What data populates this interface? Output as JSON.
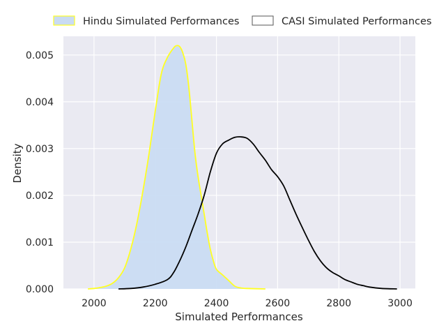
{
  "chart_data": {
    "type": "area",
    "xlabel": "Simulated Performances",
    "ylabel": "Density",
    "xlim": [
      1900,
      3050
    ],
    "ylim": [
      0,
      0.0054
    ],
    "x_ticks": [
      2000,
      2200,
      2400,
      2600,
      2800,
      3000
    ],
    "y_ticks": [
      0.0,
      0.001,
      0.002,
      0.003,
      0.004,
      0.005
    ],
    "y_tick_labels": [
      "0.000",
      "0.001",
      "0.002",
      "0.003",
      "0.004",
      "0.005"
    ],
    "grid": true,
    "legend_position": "top",
    "series": [
      {
        "name": "Hindu Simulated Performances",
        "kind": "filled-kde",
        "fill_color": "#c9dbf3",
        "line_color": "#ffff22",
        "points": [
          [
            1980,
            0.0
          ],
          [
            2000,
            1e-05
          ],
          [
            2020,
            3e-05
          ],
          [
            2040,
            6e-05
          ],
          [
            2060,
            0.00012
          ],
          [
            2080,
            0.00024
          ],
          [
            2100,
            0.00045
          ],
          [
            2120,
            0.00085
          ],
          [
            2140,
            0.0014
          ],
          [
            2160,
            0.0021
          ],
          [
            2180,
            0.0029
          ],
          [
            2200,
            0.0038
          ],
          [
            2220,
            0.0046
          ],
          [
            2240,
            0.00495
          ],
          [
            2260,
            0.00515
          ],
          [
            2270,
            0.0052
          ],
          [
            2280,
            0.00518
          ],
          [
            2290,
            0.00505
          ],
          [
            2300,
            0.0048
          ],
          [
            2310,
            0.0043
          ],
          [
            2320,
            0.0036
          ],
          [
            2330,
            0.0029
          ],
          [
            2340,
            0.0024
          ],
          [
            2350,
            0.002
          ],
          [
            2360,
            0.0016
          ],
          [
            2370,
            0.0012
          ],
          [
            2380,
            0.00085
          ],
          [
            2390,
            0.0006
          ],
          [
            2400,
            0.00042
          ],
          [
            2420,
            0.0003
          ],
          [
            2440,
            0.00018
          ],
          [
            2460,
            6e-05
          ],
          [
            2480,
            2e-05
          ],
          [
            2500,
            1e-05
          ],
          [
            2560,
            0.0
          ]
        ]
      },
      {
        "name": "CASI Simulated Performances",
        "kind": "line-kde",
        "line_color": "#000000",
        "points": [
          [
            2080,
            0.0
          ],
          [
            2120,
            1e-05
          ],
          [
            2160,
            4e-05
          ],
          [
            2200,
            0.0001
          ],
          [
            2240,
            0.0002
          ],
          [
            2260,
            0.00035
          ],
          [
            2280,
            0.0006
          ],
          [
            2300,
            0.0009
          ],
          [
            2320,
            0.00125
          ],
          [
            2340,
            0.0016
          ],
          [
            2360,
            0.002
          ],
          [
            2380,
            0.0025
          ],
          [
            2400,
            0.0029
          ],
          [
            2420,
            0.0031
          ],
          [
            2440,
            0.00318
          ],
          [
            2460,
            0.00324
          ],
          [
            2480,
            0.00325
          ],
          [
            2500,
            0.00322
          ],
          [
            2520,
            0.0031
          ],
          [
            2540,
            0.00292
          ],
          [
            2560,
            0.00275
          ],
          [
            2580,
            0.00255
          ],
          [
            2600,
            0.0024
          ],
          [
            2620,
            0.0022
          ],
          [
            2640,
            0.0019
          ],
          [
            2660,
            0.0016
          ],
          [
            2680,
            0.00132
          ],
          [
            2700,
            0.00105
          ],
          [
            2720,
            0.0008
          ],
          [
            2740,
            0.0006
          ],
          [
            2760,
            0.00045
          ],
          [
            2780,
            0.00035
          ],
          [
            2800,
            0.00028
          ],
          [
            2820,
            0.0002
          ],
          [
            2840,
            0.00015
          ],
          [
            2860,
            0.0001
          ],
          [
            2880,
            7e-05
          ],
          [
            2900,
            4e-05
          ],
          [
            2940,
            1e-05
          ],
          [
            2990,
            0.0
          ]
        ]
      }
    ]
  }
}
